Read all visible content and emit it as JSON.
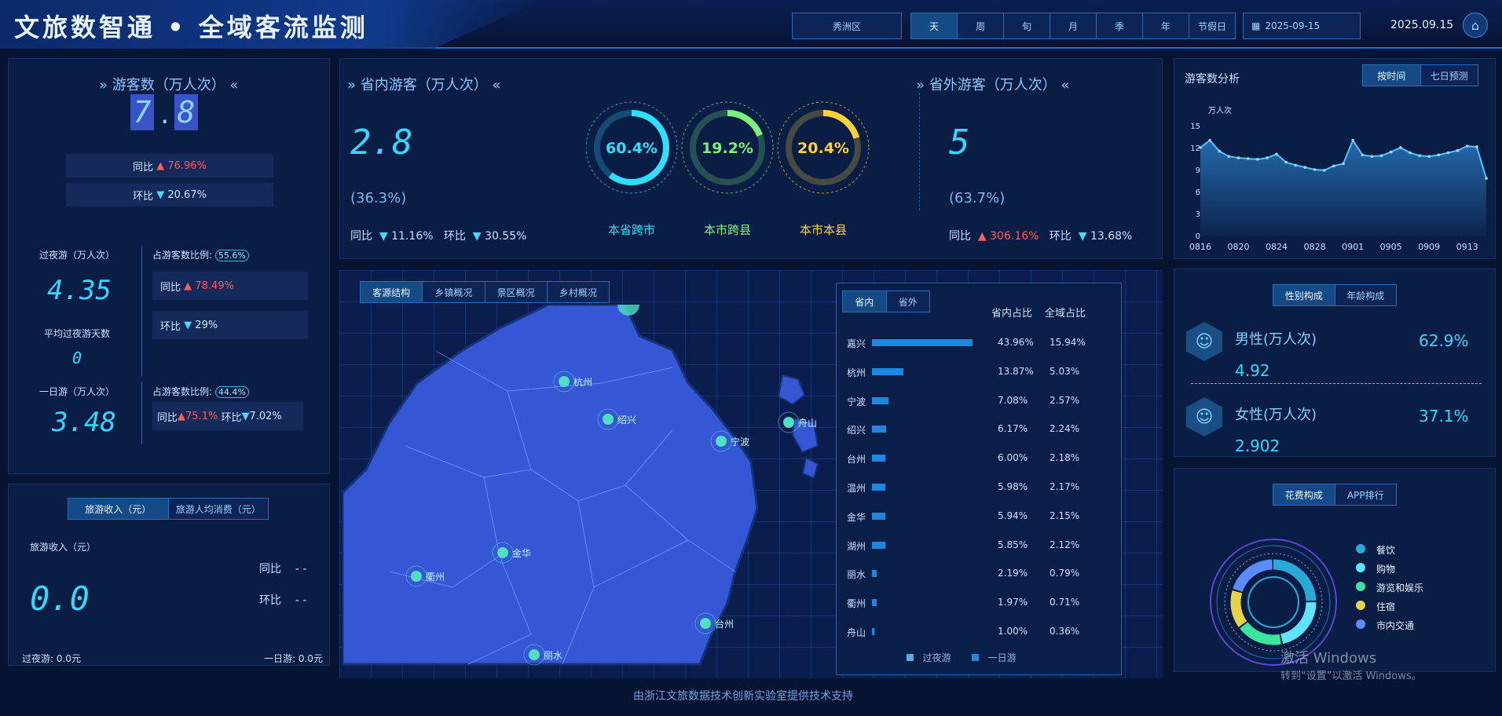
{
  "header": {
    "title": "文旅数智通 • 全域客流监测",
    "region": "秀洲区",
    "periods": [
      "天",
      "周",
      "旬",
      "月",
      "季",
      "年",
      "节假日"
    ],
    "date": "2025-09-15",
    "current_date": "2025.09.15",
    "home_icon": "home-icon"
  },
  "tourists": {
    "title": "游客数（万人次）",
    "digits": [
      "7",
      ".",
      "8"
    ],
    "yoy_label": "同比",
    "yoy": "76.96%",
    "mom_label": "环比",
    "mom": "20.67%",
    "overnight_label": "过夜游（万人次）",
    "overnight": "4.35",
    "ratio_label": "占游客数比例:",
    "overnight_ratio": "55.6%",
    "overnight_yoy": "78.49%",
    "overnight_mom": "29%",
    "avg_days_label": "平均过夜游天数",
    "avg_days": "0",
    "dayonly_label": "一日游（万人次）",
    "dayonly": "3.48",
    "dayonly_ratio": "44.4%",
    "dayonly_yoy": "75.1%",
    "dayonly_mom": "7.02%"
  },
  "income": {
    "tabs": [
      "旅游收入（元）",
      "旅游人均消费（元）"
    ],
    "label": "旅游收入（元）",
    "value": "0.0",
    "yoy_label": "同比",
    "yoy": "- -",
    "mom_label": "环比",
    "mom": "- -",
    "overnight": "过夜游: 0.0元",
    "dayonly": "一日游: 0.0元"
  },
  "in_province": {
    "title": "省内游客（万人次）",
    "value": "2.8",
    "share": "(36.3%)",
    "yoy_label": "同比",
    "yoy": "11.16%",
    "mom_label": "环比",
    "mom": "30.55%",
    "rings": [
      {
        "label": "本省跨市",
        "value": "60.4%",
        "pct": 60.4,
        "color": "#2ee0ff"
      },
      {
        "label": "本市跨县",
        "value": "19.2%",
        "pct": 19.2,
        "color": "#7df07a"
      },
      {
        "label": "本市本县",
        "value": "20.4%",
        "pct": 20.4,
        "color": "#ffd23a"
      }
    ]
  },
  "out_province": {
    "title": "省外游客（万人次）",
    "value": "5",
    "share": "(63.7%)",
    "yoy_label": "同比",
    "yoy": "306.16%",
    "mom_label": "环比",
    "mom": "13.68%"
  },
  "map": {
    "tabs": [
      "客源结构",
      "乡镇概况",
      "景区概况",
      "乡村概况"
    ],
    "cities": [
      "杭州",
      "绍兴",
      "宁波",
      "舟山",
      "金华",
      "衢州",
      "台州",
      "丽水"
    ]
  },
  "ranking": {
    "tabs": [
      "省内",
      "省外"
    ],
    "col1": "省内占比",
    "col2": "全域占比",
    "rows": [
      {
        "city": "嘉兴",
        "p1": "43.96%",
        "p2": "15.94%",
        "v": 43.96
      },
      {
        "city": "杭州",
        "p1": "13.87%",
        "p2": "5.03%",
        "v": 13.87
      },
      {
        "city": "宁波",
        "p1": "7.08%",
        "p2": "2.57%",
        "v": 7.08
      },
      {
        "city": "绍兴",
        "p1": "6.17%",
        "p2": "2.24%",
        "v": 6.17
      },
      {
        "city": "台州",
        "p1": "6.00%",
        "p2": "2.18%",
        "v": 6.0
      },
      {
        "city": "温州",
        "p1": "5.98%",
        "p2": "2.17%",
        "v": 5.98
      },
      {
        "city": "金华",
        "p1": "5.94%",
        "p2": "2.15%",
        "v": 5.94
      },
      {
        "city": "湖州",
        "p1": "5.85%",
        "p2": "2.12%",
        "v": 5.85
      },
      {
        "city": "丽水",
        "p1": "2.19%",
        "p2": "0.79%",
        "v": 2.19
      },
      {
        "city": "衢州",
        "p1": "1.97%",
        "p2": "0.71%",
        "v": 1.97
      },
      {
        "city": "舟山",
        "p1": "1.00%",
        "p2": "0.36%",
        "v": 1.0
      }
    ],
    "legend": [
      "过夜游",
      "一日游"
    ]
  },
  "analysis": {
    "title": "游客数分析",
    "tabs": [
      "按时间",
      "七日预测"
    ]
  },
  "chart_data": {
    "type": "area",
    "ylabel": "万人次",
    "ylim": [
      0,
      15
    ],
    "yticks": [
      "0",
      "3",
      "6",
      "9",
      "12",
      "15"
    ],
    "xticks": [
      "0816",
      "0820",
      "0824",
      "0828",
      "0901",
      "0905",
      "0909",
      "0913"
    ],
    "x": [
      "0816",
      "0817",
      "0818",
      "0819",
      "0820",
      "0821",
      "0822",
      "0823",
      "0824",
      "0825",
      "0826",
      "0827",
      "0828",
      "0829",
      "0830",
      "0831",
      "0901",
      "0902",
      "0903",
      "0904",
      "0905",
      "0906",
      "0907",
      "0908",
      "0909",
      "0910",
      "0911",
      "0912",
      "0913",
      "0914",
      "0915"
    ],
    "values": [
      12,
      13,
      11.5,
      10.8,
      10.6,
      10.5,
      10.4,
      10.6,
      11.1,
      10,
      9.6,
      9.3,
      9,
      8.9,
      9.5,
      9.8,
      13,
      11,
      10.8,
      10.9,
      11.4,
      12,
      11.3,
      10.9,
      10.8,
      11,
      11.3,
      11.6,
      12.2,
      12.1,
      7.8
    ]
  },
  "gender": {
    "tabs": [
      "性别构成",
      "年龄构成"
    ],
    "male_label": "男性(万人次)",
    "male_pct": "62.9%",
    "male_value": "4.92",
    "female_label": "女性(万人次)",
    "female_pct": "37.1%",
    "female_value": "2.902"
  },
  "spending": {
    "tabs": [
      "花费构成",
      "APP排行"
    ],
    "items": [
      {
        "label": "餐饮",
        "color": "#2aa9d8",
        "value": 25
      },
      {
        "label": "购物",
        "color": "#5fe3ff",
        "value": 22
      },
      {
        "label": "游览和娱乐",
        "color": "#3ce4a0",
        "value": 18
      },
      {
        "label": "住宿",
        "color": "#e8d24a",
        "value": 15
      },
      {
        "label": "市内交通",
        "color": "#5b8cff",
        "value": 20
      }
    ]
  },
  "footer": "由浙江文旅数据技术创新实验室提供技术支持",
  "watermark": {
    "line1": "激活 Windows",
    "line2": "转到“设置”以激活 Windows。"
  }
}
